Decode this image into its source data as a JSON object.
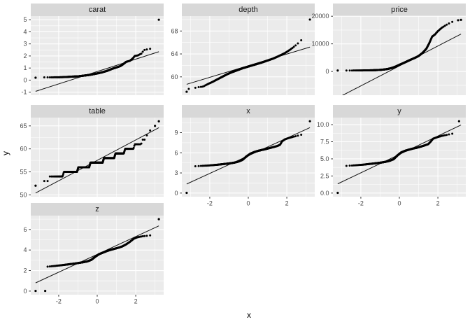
{
  "chart_data": {
    "type": "scatter",
    "subtype": "normal-qq-plot-faceted",
    "title": "",
    "xlabel": "x",
    "ylabel": "y",
    "legend": "none",
    "grid": "on",
    "points_per_facet": 500,
    "x_axis": {
      "lim": [
        -3.45,
        3.45
      ],
      "ticks": [
        -2,
        0,
        2
      ],
      "tick_labels": [
        "-2",
        "0",
        "2"
      ],
      "minor": [
        -3,
        -1,
        1,
        3
      ]
    },
    "facets": [
      {
        "name": "carat",
        "row": 1,
        "col": 1,
        "show_x_ticks": false,
        "ylim": [
          -1.25,
          5.3
        ],
        "yticks": [
          -1,
          0,
          1,
          2,
          3,
          4,
          5
        ],
        "ytick_labels": [
          "-1",
          "0",
          "1",
          "2",
          "3",
          "4",
          "5"
        ],
        "line": {
          "x": [
            -3.2,
            3.2
          ],
          "y": [
            -0.93,
            2.35
          ]
        },
        "band_range": [
          -3.05,
          3.02
        ],
        "curve_knots": [
          [
            -3.05,
            0.22
          ],
          [
            -2.7,
            0.23
          ],
          [
            -2.3,
            0.23
          ],
          [
            -1.9,
            0.24
          ],
          [
            -1.6,
            0.26
          ],
          [
            -1.3,
            0.29
          ],
          [
            -1.0,
            0.31
          ],
          [
            -0.7,
            0.37
          ],
          [
            -0.4,
            0.43
          ],
          [
            -0.1,
            0.52
          ],
          [
            0.2,
            0.62
          ],
          [
            0.5,
            0.76
          ],
          [
            0.8,
            0.95
          ],
          [
            1.0,
            1.05
          ],
          [
            1.2,
            1.16
          ],
          [
            1.35,
            1.32
          ],
          [
            1.5,
            1.51
          ],
          [
            1.7,
            1.6
          ],
          [
            1.85,
            1.8
          ],
          [
            1.95,
            2.0
          ],
          [
            2.1,
            2.04
          ],
          [
            2.3,
            2.2
          ],
          [
            2.42,
            2.48
          ],
          [
            2.6,
            2.55
          ],
          [
            2.8,
            2.6
          ],
          [
            3.02,
            2.66
          ]
        ],
        "extreme_points": [
          [
            -3.2,
            0.2
          ],
          [
            3.2,
            5.0
          ]
        ]
      },
      {
        "name": "depth",
        "row": 1,
        "col": 2,
        "show_x_ticks": false,
        "ylim": [
          56.8,
          70.6
        ],
        "yticks": [
          60,
          64,
          68
        ],
        "ytick_labels": [
          "60",
          "64",
          "68"
        ],
        "line": {
          "x": [
            -3.2,
            3.2
          ],
          "y": [
            58.7,
            65.2
          ]
        },
        "band_range": [
          -3.1,
          2.95
        ],
        "curve_knots": [
          [
            -3.1,
            57.9
          ],
          [
            -2.9,
            58.0
          ],
          [
            -2.6,
            58.2
          ],
          [
            -2.35,
            58.3
          ],
          [
            -2.1,
            58.75
          ],
          [
            -1.9,
            59.05
          ],
          [
            -1.7,
            59.4
          ],
          [
            -1.5,
            59.75
          ],
          [
            -1.3,
            60.1
          ],
          [
            -1.1,
            60.45
          ],
          [
            -0.9,
            60.75
          ],
          [
            -0.7,
            61.0
          ],
          [
            -0.5,
            61.25
          ],
          [
            -0.3,
            61.5
          ],
          [
            -0.1,
            61.7
          ],
          [
            0.1,
            61.9
          ],
          [
            0.4,
            62.2
          ],
          [
            0.7,
            62.5
          ],
          [
            1.0,
            62.85
          ],
          [
            1.3,
            63.2
          ],
          [
            1.6,
            63.65
          ],
          [
            1.9,
            64.15
          ],
          [
            2.2,
            64.8
          ],
          [
            2.5,
            65.6
          ],
          [
            2.75,
            66.4
          ],
          [
            2.95,
            67.2
          ]
        ],
        "extreme_points": [
          [
            -3.2,
            57.4
          ],
          [
            3.2,
            70.0
          ]
        ]
      },
      {
        "name": "price",
        "row": 1,
        "col": 3,
        "show_x_ticks": false,
        "ylim": [
          -8600,
          20050
        ],
        "yticks": [
          0,
          10000,
          20000
        ],
        "ytick_labels": [
          "0",
          "10000",
          "20000"
        ],
        "line": {
          "x": [
            -3.2,
            3.2
          ],
          "y": [
            -9550,
            13550
          ]
        },
        "band_range": [
          -3.05,
          2.9
        ],
        "curve_knots": [
          [
            -3.05,
            335
          ],
          [
            -2.6,
            345
          ],
          [
            -2.2,
            360
          ],
          [
            -1.8,
            390
          ],
          [
            -1.5,
            420
          ],
          [
            -1.2,
            480
          ],
          [
            -1.0,
            560
          ],
          [
            -0.8,
            700
          ],
          [
            -0.6,
            900
          ],
          [
            -0.4,
            1250
          ],
          [
            -0.2,
            1750
          ],
          [
            0,
            2400
          ],
          [
            0.2,
            3000
          ],
          [
            0.4,
            3650
          ],
          [
            0.6,
            4300
          ],
          [
            0.8,
            4900
          ],
          [
            1.0,
            5600
          ],
          [
            1.2,
            6700
          ],
          [
            1.4,
            8200
          ],
          [
            1.55,
            10200
          ],
          [
            1.7,
            12600
          ],
          [
            1.85,
            13400
          ],
          [
            2.0,
            14600
          ],
          [
            2.2,
            15800
          ],
          [
            2.4,
            16700
          ],
          [
            2.6,
            17500
          ],
          [
            2.8,
            18100
          ],
          [
            2.9,
            18350
          ]
        ],
        "extreme_points": [
          [
            -3.2,
            330
          ],
          [
            3.05,
            18550
          ],
          [
            3.2,
            18700
          ]
        ]
      },
      {
        "name": "table",
        "row": 2,
        "col": 1,
        "show_x_ticks": false,
        "ylim": [
          49.6,
          66.8
        ],
        "yticks": [
          50,
          55,
          60,
          65
        ],
        "ytick_labels": [
          "50",
          "55",
          "60",
          "65"
        ],
        "line": {
          "x": [
            -3.2,
            3.2
          ],
          "y": [
            50.4,
            64.6
          ]
        },
        "band_range": [
          -3.0,
          2.85
        ],
        "curve_knots": [
          [
            -3.0,
            53
          ],
          [
            -2.55,
            53
          ],
          [
            -2.48,
            54
          ],
          [
            -1.8,
            54
          ],
          [
            -1.73,
            55
          ],
          [
            -1.05,
            55
          ],
          [
            -0.98,
            56
          ],
          [
            -0.42,
            56
          ],
          [
            -0.35,
            57
          ],
          [
            0.28,
            57
          ],
          [
            0.35,
            58
          ],
          [
            0.88,
            58
          ],
          [
            0.95,
            59
          ],
          [
            1.38,
            59
          ],
          [
            1.45,
            60
          ],
          [
            1.88,
            60
          ],
          [
            1.95,
            61
          ],
          [
            2.28,
            61
          ],
          [
            2.35,
            62
          ],
          [
            2.52,
            62
          ],
          [
            2.58,
            63
          ],
          [
            2.68,
            63
          ],
          [
            2.74,
            64
          ],
          [
            2.85,
            64
          ]
        ],
        "extreme_points": [
          [
            -3.2,
            52
          ],
          [
            3.0,
            65
          ],
          [
            3.2,
            66
          ]
        ]
      },
      {
        "name": "x",
        "row": 2,
        "col": 2,
        "show_x_ticks": true,
        "ylim": [
          -0.54,
          11.24
        ],
        "yticks": [
          0,
          3,
          6,
          9
        ],
        "ytick_labels": [
          "0",
          "3",
          "6",
          "9"
        ],
        "line": {
          "x": [
            -3.2,
            3.2
          ],
          "y": [
            1.35,
            9.75
          ]
        },
        "band_range": [
          -2.88,
          2.9
        ],
        "curve_knots": [
          [
            -2.88,
            3.98
          ],
          [
            -2.6,
            4.02
          ],
          [
            -2.35,
            4.06
          ],
          [
            -2.1,
            4.1
          ],
          [
            -1.85,
            4.16
          ],
          [
            -1.6,
            4.22
          ],
          [
            -1.35,
            4.3
          ],
          [
            -1.1,
            4.38
          ],
          [
            -0.9,
            4.45
          ],
          [
            -0.7,
            4.55
          ],
          [
            -0.5,
            4.7
          ],
          [
            -0.3,
            4.95
          ],
          [
            -0.1,
            5.45
          ],
          [
            0.1,
            5.85
          ],
          [
            0.3,
            6.1
          ],
          [
            0.5,
            6.28
          ],
          [
            0.7,
            6.42
          ],
          [
            0.9,
            6.55
          ],
          [
            1.1,
            6.7
          ],
          [
            1.3,
            6.85
          ],
          [
            1.5,
            7.0
          ],
          [
            1.65,
            7.2
          ],
          [
            1.75,
            7.7
          ],
          [
            1.9,
            8.0
          ],
          [
            2.1,
            8.2
          ],
          [
            2.3,
            8.35
          ],
          [
            2.5,
            8.5
          ],
          [
            2.7,
            8.65
          ],
          [
            2.9,
            8.8
          ]
        ],
        "extreme_points": [
          [
            -3.2,
            0.03
          ],
          [
            3.2,
            10.7
          ]
        ]
      },
      {
        "name": "y",
        "row": 2,
        "col": 3,
        "show_x_ticks": true,
        "ylim": [
          -0.53,
          11.03
        ],
        "yticks": [
          0,
          2.5,
          5,
          7.5,
          10
        ],
        "ytick_labels": [
          "0.0",
          "2.5",
          "5.0",
          "7.5",
          "10.0"
        ],
        "line": {
          "x": [
            -3.2,
            3.2
          ],
          "y": [
            1.35,
            9.95
          ]
        },
        "band_range": [
          -2.88,
          2.9
        ],
        "curve_knots": [
          [
            -2.88,
            3.95
          ],
          [
            -2.6,
            4.0
          ],
          [
            -2.35,
            4.05
          ],
          [
            -2.1,
            4.1
          ],
          [
            -1.85,
            4.16
          ],
          [
            -1.6,
            4.24
          ],
          [
            -1.35,
            4.32
          ],
          [
            -1.1,
            4.4
          ],
          [
            -0.9,
            4.48
          ],
          [
            -0.7,
            4.58
          ],
          [
            -0.5,
            4.72
          ],
          [
            -0.3,
            4.95
          ],
          [
            -0.1,
            5.5
          ],
          [
            0.1,
            5.95
          ],
          [
            0.3,
            6.18
          ],
          [
            0.5,
            6.35
          ],
          [
            0.7,
            6.5
          ],
          [
            0.9,
            6.62
          ],
          [
            1.1,
            6.78
          ],
          [
            1.3,
            6.95
          ],
          [
            1.5,
            7.15
          ],
          [
            1.62,
            7.5
          ],
          [
            1.75,
            7.95
          ],
          [
            1.95,
            8.15
          ],
          [
            2.2,
            8.35
          ],
          [
            2.45,
            8.5
          ],
          [
            2.7,
            8.65
          ],
          [
            2.9,
            8.78
          ]
        ],
        "extreme_points": [
          [
            -3.2,
            0.03
          ],
          [
            3.1,
            10.5
          ]
        ]
      },
      {
        "name": "z",
        "row": 3,
        "col": 1,
        "show_x_ticks": true,
        "ylim": [
          -0.35,
          7.35
        ],
        "yticks": [
          0,
          2,
          4,
          6
        ],
        "ytick_labels": [
          "0",
          "2",
          "4",
          "6"
        ],
        "line": {
          "x": [
            -3.2,
            3.2
          ],
          "y": [
            0.8,
            6.35
          ]
        },
        "band_range": [
          -2.58,
          2.85
        ],
        "curve_knots": [
          [
            -2.58,
            2.38
          ],
          [
            -2.35,
            2.42
          ],
          [
            -2.1,
            2.47
          ],
          [
            -1.85,
            2.52
          ],
          [
            -1.6,
            2.58
          ],
          [
            -1.35,
            2.64
          ],
          [
            -1.1,
            2.7
          ],
          [
            -0.9,
            2.76
          ],
          [
            -0.7,
            2.82
          ],
          [
            -0.5,
            2.9
          ],
          [
            -0.3,
            3.05
          ],
          [
            -0.1,
            3.35
          ],
          [
            0.1,
            3.6
          ],
          [
            0.3,
            3.75
          ],
          [
            0.5,
            3.9
          ],
          [
            0.7,
            4.02
          ],
          [
            0.9,
            4.12
          ],
          [
            1.1,
            4.22
          ],
          [
            1.3,
            4.35
          ],
          [
            1.5,
            4.55
          ],
          [
            1.7,
            4.8
          ],
          [
            1.9,
            5.1
          ],
          [
            2.1,
            5.25
          ],
          [
            2.3,
            5.32
          ],
          [
            2.55,
            5.38
          ],
          [
            2.85,
            5.45
          ]
        ],
        "extreme_points": [
          [
            -3.2,
            0.02
          ],
          [
            -2.7,
            0.02
          ],
          [
            3.2,
            7.0
          ]
        ]
      }
    ]
  },
  "style": {
    "background": "#FFFFFF",
    "panel_bg": "#EBEBEB",
    "strip_bg": "#D8D8D8",
    "grid_major": "#FFFFFF",
    "grid_minor": "#FFFFFF",
    "point_color": "#000000",
    "line_color": "#111111",
    "tick_label_color": "#474747",
    "tick_mark_color": "#333333",
    "axis_title_color": "#000000",
    "strip_text_color": "#1A1A1A"
  }
}
